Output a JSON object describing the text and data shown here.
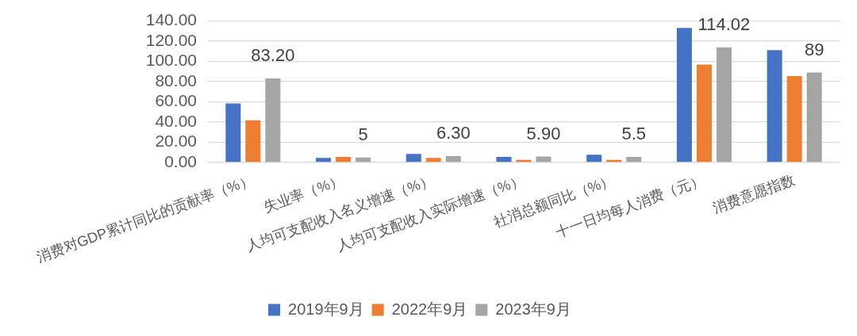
{
  "chart_data": {
    "type": "bar",
    "categories": [
      "消费对GDP累计同比的贡献率（%）",
      "失业率（%）",
      "人均可支配收入名义增速（%）",
      "人均可支配收入实际增速（%）",
      "社消总额同比（%）",
      "十一日均每人消费（元）",
      "消费意愿指数"
    ],
    "series": [
      {
        "name": "2019年9月",
        "color": "#4472c4",
        "values": [
          58.5,
          4.6,
          8.5,
          5.4,
          7.7,
          133.3,
          111.3
        ]
      },
      {
        "name": "2022年9月",
        "color": "#ed7d31",
        "values": [
          41.8,
          5.4,
          4.6,
          2.6,
          2.6,
          96.9,
          85.6
        ]
      },
      {
        "name": "2023年9月",
        "color": "#a5a5a5",
        "values": [
          83.2,
          5,
          6.3,
          5.9,
          5.5,
          114.02,
          89
        ],
        "value_labels": [
          "83.20",
          "5",
          "6.30",
          "5.90",
          "5.5",
          "114.02",
          "89"
        ]
      }
    ],
    "ylim": [
      0,
      140
    ],
    "yticks": [
      {
        "value": 0,
        "label": "0.00"
      },
      {
        "value": 20,
        "label": "20.00"
      },
      {
        "value": 40,
        "label": "40.00"
      },
      {
        "value": 60,
        "label": "60.00"
      },
      {
        "value": 80,
        "label": "80.00"
      },
      {
        "value": 100,
        "label": "100.00"
      },
      {
        "value": 120,
        "label": "120.00"
      },
      {
        "value": 140,
        "label": "140.00"
      }
    ],
    "grid": "y",
    "legend": "bottom"
  }
}
